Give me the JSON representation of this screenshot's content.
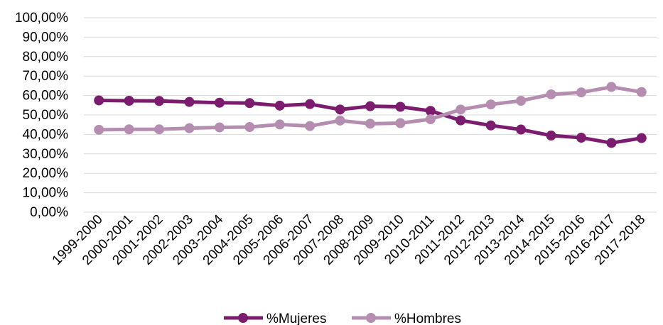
{
  "chart_data": {
    "type": "line",
    "title": "",
    "xlabel": "",
    "ylabel": "",
    "categories": [
      "1999-2000",
      "2000-2001",
      "2001-2002",
      "2002-2003",
      "2003-2004",
      "2004-2005",
      "2005-2006",
      "2006-2007",
      "2007-2008",
      "2008-2009",
      "2009-2010",
      "2010-2011",
      "2011-2012",
      "2012-2013",
      "2013-2014",
      "2014-2015",
      "2015-2016",
      "2016-2017",
      "2017-2018"
    ],
    "ylim": [
      0,
      100
    ],
    "y_ticks": [
      "0,00%",
      "10,00%",
      "20,00%",
      "30,00%",
      "40,00%",
      "50,00%",
      "60,00%",
      "70,00%",
      "80,00%",
      "90,00%",
      "100,00%"
    ],
    "grid": true,
    "legend_position": "bottom",
    "series": [
      {
        "name": "%Mujeres",
        "color": "#7b1c6e",
        "values": [
          57.5,
          57.3,
          57.2,
          56.7,
          56.3,
          56.1,
          54.8,
          55.6,
          52.8,
          54.5,
          54.2,
          52.1,
          47.2,
          44.6,
          42.5,
          39.4,
          38.3,
          35.6,
          38.1
        ]
      },
      {
        "name": "%Hombres",
        "color": "#b58db0",
        "values": [
          42.4,
          42.6,
          42.6,
          43.2,
          43.6,
          43.8,
          45.1,
          44.3,
          47.1,
          45.5,
          45.8,
          47.8,
          52.8,
          55.4,
          57.3,
          60.6,
          61.6,
          64.4,
          61.8
        ]
      }
    ]
  }
}
